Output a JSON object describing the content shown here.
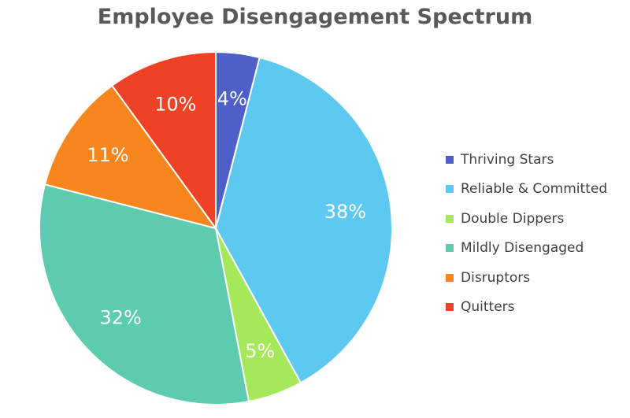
{
  "chart_data": {
    "type": "pie",
    "title": "Employee Disengagement Spectrum",
    "legend_position": "right",
    "slices": [
      {
        "name": "Thriving Stars",
        "value": 4,
        "label": "4%",
        "color": "#4e5fc9"
      },
      {
        "name": "Reliable & Committed",
        "value": 38,
        "label": "38%",
        "color": "#5ec9f0"
      },
      {
        "name": "Double Dippers",
        "value": 5,
        "label": "5%",
        "color": "#a5e85a"
      },
      {
        "name": "Mildly Disengaged",
        "value": 32,
        "label": "32%",
        "color": "#5ccbb0"
      },
      {
        "name": "Disruptors",
        "value": 11,
        "label": "11%",
        "color": "#f7861f"
      },
      {
        "name": "Quitters",
        "value": 10,
        "label": "10%",
        "color": "#ef4224"
      }
    ]
  }
}
